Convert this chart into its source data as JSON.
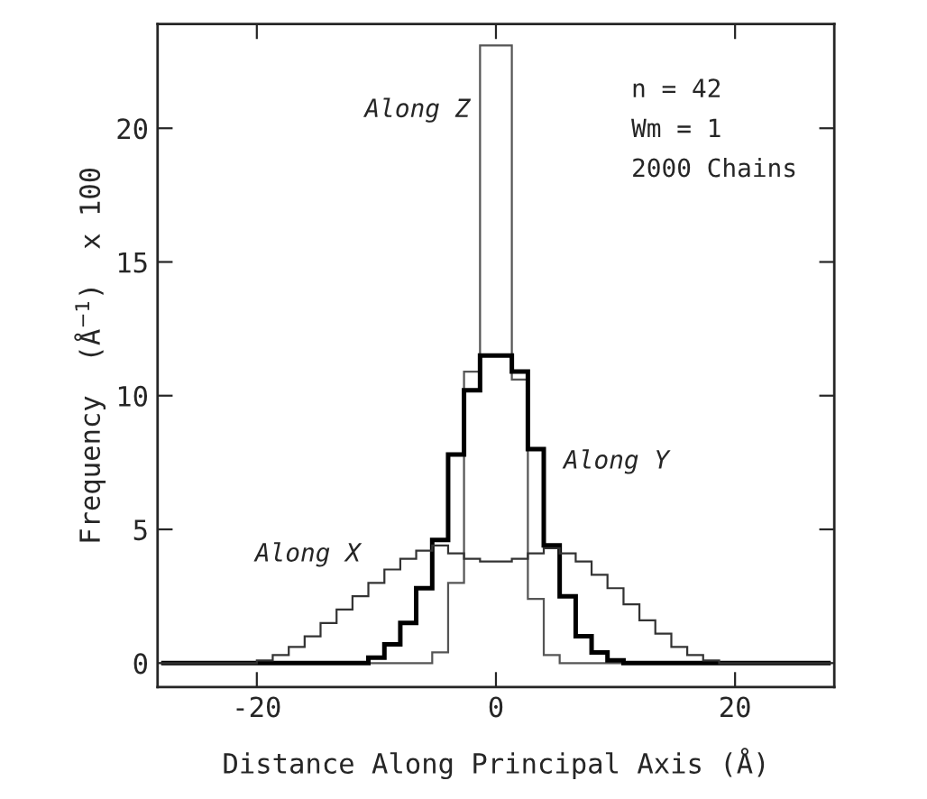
{
  "chart_data": {
    "type": "histogram",
    "xlabel": "Distance Along Principal Axis (Å)",
    "ylabel": "Frequency  (Å$^{−1}$)  x 100",
    "bins": [
      -28,
      -26.67,
      -25.33,
      -24,
      -22.67,
      -21.33,
      -20,
      -18.67,
      -17.33,
      -16,
      -14.67,
      -13.33,
      -12,
      -10.67,
      -9.33,
      -8,
      -6.67,
      -5.33,
      -4,
      -2.67,
      -1.33,
      0,
      1.33,
      2.67,
      4,
      5.33,
      6.67,
      8,
      9.33,
      10.67,
      12,
      13.33,
      14.67,
      16,
      17.33,
      18.67,
      20,
      21.33,
      22.67,
      24,
      25.33,
      26.67,
      28
    ],
    "series": [
      {
        "color": "#555555",
        "values": [
          0,
          0,
          0,
          0,
          0,
          0,
          0,
          0,
          0,
          0,
          0,
          0,
          0,
          0,
          0,
          0,
          0,
          0.4,
          3.0,
          10.9,
          23.1,
          23.1,
          10.6,
          2.4,
          0.3,
          0,
          0,
          0,
          0,
          0,
          0,
          0,
          0,
          0,
          0,
          0,
          0,
          0,
          0,
          0,
          0,
          0
        ]
      },
      {
        "color": "#000000",
        "values": [
          0,
          0,
          0,
          0,
          0,
          0,
          0,
          0,
          0,
          0,
          0,
          0,
          0,
          0.2,
          0.7,
          1.5,
          2.8,
          4.6,
          7.8,
          10.2,
          11.5,
          11.5,
          10.9,
          8.0,
          4.4,
          2.5,
          1.0,
          0.4,
          0.1,
          0,
          0,
          0,
          0,
          0,
          0,
          0,
          0,
          0,
          0,
          0,
          0,
          0
        ]
      },
      {
        "color": "#333333",
        "values": [
          0,
          0,
          0,
          0,
          0,
          0,
          0.1,
          0.3,
          0.6,
          1.0,
          1.5,
          2.0,
          2.5,
          3.0,
          3.5,
          3.9,
          4.2,
          4.4,
          4.1,
          3.9,
          3.8,
          3.8,
          3.9,
          4.1,
          4.3,
          4.1,
          3.8,
          3.3,
          2.8,
          2.2,
          1.6,
          1.1,
          0.6,
          0.3,
          0.1,
          0.0,
          0,
          0,
          0,
          0,
          0,
          0
        ]
      }
    ],
    "xlim": [
      -28.3,
      28.3
    ],
    "ylim": [
      -0.9,
      23.9
    ],
    "xticks": [
      -20,
      0,
      20
    ],
    "yticks": [
      0,
      5,
      10,
      15,
      20
    ],
    "annotations": [
      "Along Z",
      "Along Y",
      "Along X",
      "n = 42",
      "Wm = 1",
      "2000 Chains"
    ]
  }
}
